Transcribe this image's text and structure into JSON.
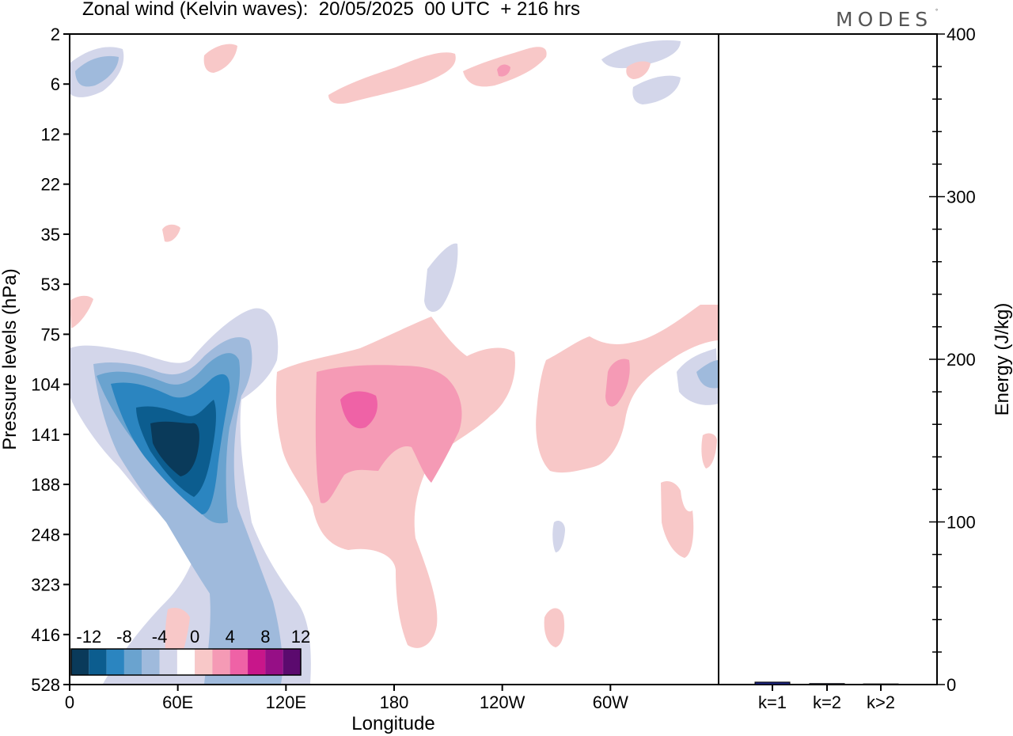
{
  "title": "Zonal wind (Kelvin waves):  20/05/2025  00 UTC  + 216 hrs",
  "logo": "MODES",
  "logo_mark": "°",
  "chart_data": [
    {
      "type": "heatmap",
      "title": "Zonal wind (Kelvin waves):  20/05/2025  00 UTC  + 216 hrs",
      "xlabel": "Longitude",
      "ylabel": "Pressure levels (hPa)",
      "x_ticks": [
        "0",
        "60E",
        "120E",
        "180",
        "120W",
        "60W"
      ],
      "x_range": [
        0,
        360
      ],
      "y_ticks": [
        "2",
        "6",
        "12",
        "22",
        "35",
        "53",
        "75",
        "104",
        "141",
        "188",
        "248",
        "323",
        "416",
        "528"
      ],
      "colorbar": {
        "labels": [
          "-12",
          "-8",
          "-4",
          "0",
          "4",
          "8",
          "12"
        ],
        "levels": [
          -14,
          -12,
          -10,
          -8,
          -6,
          -4,
          -2,
          2,
          4,
          6,
          8,
          10,
          12,
          14
        ],
        "colors": [
          "#0a3a5a",
          "#0c5d8f",
          "#2b85c0",
          "#6aa3cf",
          "#9fbadc",
          "#d3d6ea",
          "#ffffff",
          "#f8c8c8",
          "#f59ab5",
          "#ef62a6",
          "#c8168a",
          "#960f86",
          "#5b0a6e"
        ]
      },
      "features": [
        {
          "name": "negative-anomaly-core",
          "longitude_deg": 60,
          "pressure_hpa": 141,
          "peak_value": -14
        },
        {
          "name": "positive-anomaly-central",
          "longitude_deg": 163,
          "pressure_hpa": 120,
          "peak_value": 8
        },
        {
          "name": "positive-anomaly-east",
          "longitude_deg": 300,
          "pressure_hpa": 115,
          "peak_value": 6
        }
      ]
    },
    {
      "type": "bar",
      "categories": [
        "k=1",
        "k=2",
        "k>2"
      ],
      "values": [
        1.5,
        0.6,
        0.4
      ],
      "ylabel": "Energy (J/kg)",
      "ylim": [
        0,
        400
      ],
      "y_ticks": [
        "0",
        "100",
        "200",
        "300",
        "400"
      ],
      "bar_color": "#1a237e"
    }
  ]
}
